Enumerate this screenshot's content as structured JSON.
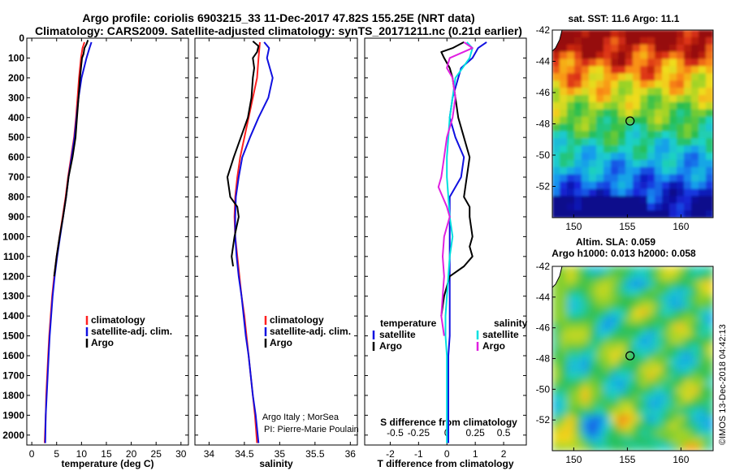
{
  "header": {
    "line1": "Argo profile: coriolis 6903215_33 11-Dec-2017 47.82S 155.25E (NRT data)",
    "line2": "Climatology: CARS2009. Satellite-adjusted climatology: synTS_20171211.nc (0.21d earlier)"
  },
  "colors": {
    "climatology": "#ff2020",
    "satellite": "#1010e0",
    "argo": "#000000",
    "salinity_satellite": "#00e0e0",
    "salinity_argo": "#e020e0"
  },
  "depth_ticks": [
    0,
    100,
    200,
    300,
    400,
    500,
    600,
    700,
    800,
    900,
    1000,
    1100,
    1200,
    1300,
    1400,
    1500,
    1600,
    1700,
    1800,
    1900,
    2000
  ],
  "chart_data": [
    {
      "type": "line",
      "panel": "temperature",
      "xlabel": "temperature (deg C)",
      "xlim": [
        -1,
        31.5
      ],
      "ylim": [
        0,
        2050
      ],
      "y_reversed": true,
      "xticks": [
        0,
        5,
        10,
        15,
        20,
        25,
        30
      ],
      "legend": [
        "climatology",
        "satellite-adj. clim.",
        "Argo"
      ],
      "series": [
        {
          "name": "climatology",
          "color": "#ff2020",
          "y": [
            20,
            50,
            100,
            200,
            300,
            400,
            500,
            600,
            700,
            800,
            900,
            1000,
            1100,
            1200,
            1300,
            1400,
            1500,
            1600,
            1700,
            1800,
            1900,
            2040
          ],
          "x": [
            10.6,
            10.2,
            9.9,
            9.5,
            9.2,
            8.9,
            8.5,
            7.9,
            7.3,
            6.8,
            6.2,
            5.6,
            5.0,
            4.5,
            4.1,
            3.8,
            3.5,
            3.3,
            3.1,
            2.9,
            2.8,
            2.6
          ]
        },
        {
          "name": "satellite-adj. clim.",
          "color": "#1010e0",
          "y": [
            20,
            50,
            100,
            200,
            300,
            400,
            500,
            600,
            700,
            800,
            900,
            1000,
            1100,
            1200,
            1300,
            1400,
            1500,
            1600,
            1700,
            1800,
            1900,
            2040
          ],
          "x": [
            12.0,
            11.6,
            11.0,
            10.0,
            9.4,
            9.0,
            8.6,
            8.0,
            7.4,
            6.9,
            6.3,
            5.7,
            5.1,
            4.6,
            4.2,
            3.9,
            3.6,
            3.4,
            3.2,
            3.0,
            2.8,
            2.7
          ]
        },
        {
          "name": "Argo",
          "color": "#000000",
          "y": [
            10,
            30,
            50,
            80,
            100,
            150,
            200,
            300,
            400,
            500,
            600,
            700,
            800,
            900,
            1000,
            1100,
            1200
          ],
          "x": [
            11.3,
            11.0,
            10.6,
            10.4,
            10.1,
            9.9,
            9.7,
            9.4,
            9.1,
            8.8,
            8.2,
            7.4,
            6.9,
            6.3,
            5.6,
            5.0,
            4.5
          ]
        }
      ]
    },
    {
      "type": "line",
      "panel": "salinity",
      "xlabel": "salinity",
      "xlim": [
        33.8,
        36.1
      ],
      "ylim": [
        0,
        2050
      ],
      "y_reversed": true,
      "xticks": [
        34,
        34.5,
        35,
        35.5,
        36
      ],
      "legend": [
        "climatology",
        "satellite-adj. clim.",
        "Argo"
      ],
      "series": [
        {
          "name": "climatology",
          "color": "#ff2020",
          "y": [
            20,
            100,
            200,
            300,
            400,
            500,
            600,
            700,
            800,
            900,
            1000,
            1100,
            1200,
            1300,
            1400,
            1500,
            1600,
            1700,
            1800,
            1900,
            2040
          ],
          "x": [
            34.72,
            34.7,
            34.68,
            34.62,
            34.56,
            34.5,
            34.44,
            34.4,
            34.37,
            34.36,
            34.37,
            34.4,
            34.43,
            34.46,
            34.5,
            34.53,
            34.56,
            34.59,
            34.62,
            34.65,
            34.68
          ]
        },
        {
          "name": "satellite-adj. clim.",
          "color": "#1010e0",
          "y": [
            20,
            50,
            100,
            150,
            200,
            300,
            400,
            500,
            600,
            700,
            800,
            900,
            1000,
            1100,
            1200,
            1300,
            1400,
            1500,
            1600,
            1700,
            1800,
            1900,
            2040
          ],
          "x": [
            34.78,
            34.85,
            34.82,
            34.86,
            34.9,
            34.84,
            34.7,
            34.58,
            34.47,
            34.42,
            34.38,
            34.37,
            34.37,
            34.39,
            34.42,
            34.46,
            34.49,
            34.52,
            34.56,
            34.59,
            34.62,
            34.66,
            34.7
          ]
        },
        {
          "name": "Argo",
          "color": "#000000",
          "y": [
            15,
            40,
            70,
            100,
            150,
            200,
            300,
            400,
            500,
            600,
            700,
            800,
            850,
            900,
            1000,
            1100,
            1150
          ],
          "x": [
            34.62,
            34.7,
            34.68,
            34.62,
            34.64,
            34.62,
            34.6,
            34.55,
            34.45,
            34.35,
            34.26,
            34.3,
            34.4,
            34.42,
            34.36,
            34.32,
            34.34
          ]
        }
      ]
    },
    {
      "type": "line",
      "panel": "differences",
      "xlabel_bottom": "T difference from climatology",
      "xlabel_top": "S difference from climatology",
      "xlim": [
        -2.9,
        2.8
      ],
      "ylim": [
        0,
        2050
      ],
      "y_reversed": true,
      "xticks_bottom": [
        -2,
        -1,
        0,
        1,
        2
      ],
      "xticks_top": [
        "-0.5",
        "-0.25",
        "0",
        "0.25",
        "0.5"
      ],
      "legend_left_title": "temperature",
      "legend_left": [
        "satellite",
        "Argo"
      ],
      "legend_right_title": "salinity",
      "legend_right": [
        "satellite",
        "Argo"
      ],
      "series": [
        {
          "name": "T satellite",
          "color": "#1010e0",
          "y": [
            20,
            50,
            100,
            150,
            200,
            300,
            400,
            500,
            600,
            700,
            800,
            900,
            1000,
            1100,
            1200,
            1300,
            1400,
            1500,
            1600,
            1700,
            1800,
            1900,
            2040
          ],
          "x": [
            1.4,
            1.1,
            0.9,
            0.5,
            0.4,
            0.2,
            0.1,
            0.3,
            0.6,
            0.5,
            0.1,
            0.1,
            0.1,
            0.1,
            0.1,
            0.1,
            0.1,
            0.1,
            0.05,
            0.05,
            0.05,
            0.05,
            0.05
          ]
        },
        {
          "name": "T Argo",
          "color": "#000000",
          "y": [
            20,
            50,
            70,
            100,
            150,
            200,
            300,
            400,
            500,
            600,
            700,
            800,
            850,
            900,
            1000,
            1050,
            1100,
            1150,
            1200,
            1300,
            1400
          ],
          "x": [
            0.6,
            0.2,
            -0.2,
            -0.1,
            0.1,
            0.2,
            0.3,
            0.4,
            0.6,
            0.8,
            0.7,
            0.6,
            0.8,
            0.8,
            0.9,
            0.8,
            0.9,
            0.6,
            0.1,
            -0.1,
            -0.2
          ]
        },
        {
          "name": "S satellite",
          "color": "#00e0e0",
          "y": [
            20,
            50,
            100,
            200,
            300,
            400,
            500,
            600,
            700,
            800,
            900,
            1000,
            1100,
            1200,
            1300,
            1400,
            1500,
            1600,
            1700,
            1800,
            1900,
            2040
          ],
          "x": [
            0.7,
            0.9,
            0.8,
            0.3,
            0.2,
            0.1,
            0.05,
            0.0,
            0.0,
            0.05,
            0.1,
            0.2,
            0.1,
            0.05,
            0.0,
            -0.05,
            -0.05,
            0.0,
            0.0,
            0.0,
            0.0,
            0.0
          ]
        },
        {
          "name": "S Argo",
          "color": "#e020e0",
          "y": [
            20,
            50,
            100,
            150,
            200,
            300,
            400,
            500,
            600,
            700,
            750,
            800,
            850,
            900,
            1000,
            1100,
            1200,
            1300,
            1400,
            1500
          ],
          "x": [
            0.6,
            0.9,
            0.1,
            0.0,
            0.2,
            0.3,
            0.2,
            0.0,
            -0.1,
            -0.2,
            -0.3,
            -0.15,
            0.0,
            0.1,
            -0.1,
            -0.15,
            -0.1,
            -0.15,
            -0.2,
            -0.1
          ]
        }
      ]
    }
  ],
  "annotations": {
    "argo_italy": "Argo Italy ; MorSea",
    "pi": "PI: Pierre-Marie Poulain",
    "footer": "©IMOS 13-Dec-2018 04:42:13"
  },
  "map_sst": {
    "title": "sat. SST: 11.6 Argo: 11.1",
    "lat_ticks": [
      -42,
      -44,
      -46,
      -48,
      -50,
      -52
    ],
    "lon_ticks": [
      150,
      155,
      160
    ],
    "float_lat": -47.82,
    "float_lon": 155.25,
    "lat_range": [
      -42,
      -54
    ],
    "lon_range": [
      148,
      163
    ]
  },
  "map_sla": {
    "title1": "Altim. SLA: 0.059",
    "title2": "Argo h1000: 0.013 h2000: 0.058",
    "lat_ticks": [
      -42,
      -44,
      -46,
      -48,
      -50,
      -52
    ],
    "lon_ticks": [
      150,
      155,
      160
    ],
    "float_lat": -47.82,
    "float_lon": 155.25,
    "lat_range": [
      -42,
      -54
    ],
    "lon_range": [
      148,
      163
    ]
  }
}
